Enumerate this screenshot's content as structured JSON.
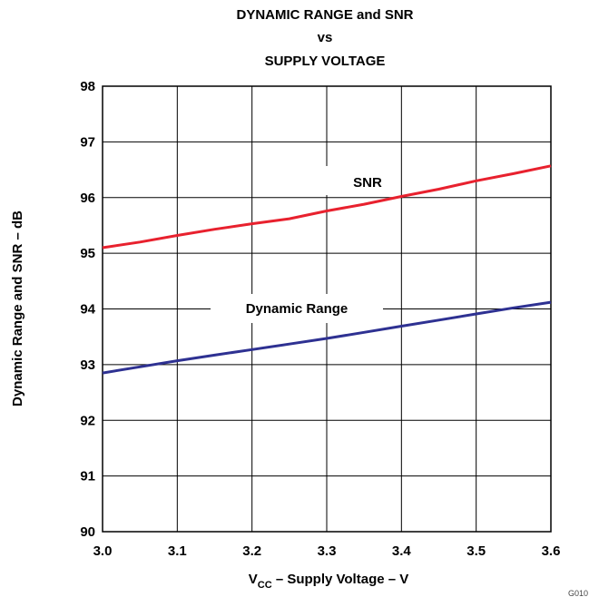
{
  "chart_data": {
    "type": "line",
    "title_lines": [
      "DYNAMIC RANGE and SNR",
      "vs",
      "SUPPLY VOLTAGE"
    ],
    "xlabel": {
      "main": "V",
      "sub": "CC",
      "rest": " – Supply Voltage – V"
    },
    "ylabel": "Dynamic Range and SNR – dB",
    "xlim": [
      3.0,
      3.6
    ],
    "ylim": [
      90,
      98
    ],
    "x_ticks": [
      "3.0",
      "3.1",
      "3.2",
      "3.3",
      "3.4",
      "3.5",
      "3.6"
    ],
    "y_ticks": [
      "90",
      "91",
      "92",
      "93",
      "94",
      "95",
      "96",
      "97",
      "98"
    ],
    "grid": true,
    "series": [
      {
        "name": "SNR",
        "color": "#e8212e",
        "x": [
          3.0,
          3.05,
          3.1,
          3.15,
          3.2,
          3.25,
          3.3,
          3.35,
          3.4,
          3.45,
          3.5,
          3.55,
          3.6
        ],
        "y": [
          95.1,
          95.2,
          95.32,
          95.43,
          95.53,
          95.62,
          95.76,
          95.88,
          96.02,
          96.15,
          96.3,
          96.43,
          96.57
        ]
      },
      {
        "name": "Dynamic Range",
        "color": "#2e3192",
        "x": [
          3.0,
          3.05,
          3.1,
          3.15,
          3.2,
          3.25,
          3.3,
          3.35,
          3.4,
          3.45,
          3.5,
          3.55,
          3.6
        ],
        "y": [
          92.85,
          92.96,
          93.07,
          93.17,
          93.27,
          93.37,
          93.47,
          93.58,
          93.69,
          93.8,
          93.91,
          94.02,
          94.12
        ]
      }
    ],
    "figure_id": "G010"
  }
}
